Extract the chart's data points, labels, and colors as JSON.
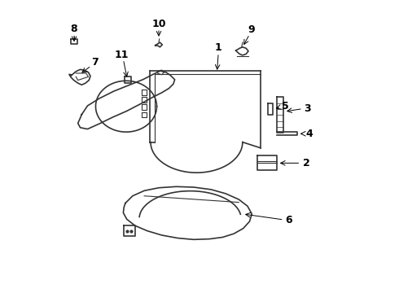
{
  "bg_color": "#ffffff",
  "line_color": "#333333",
  "figsize": [
    4.9,
    3.6
  ],
  "dpi": 100,
  "label_fontsize": 9
}
